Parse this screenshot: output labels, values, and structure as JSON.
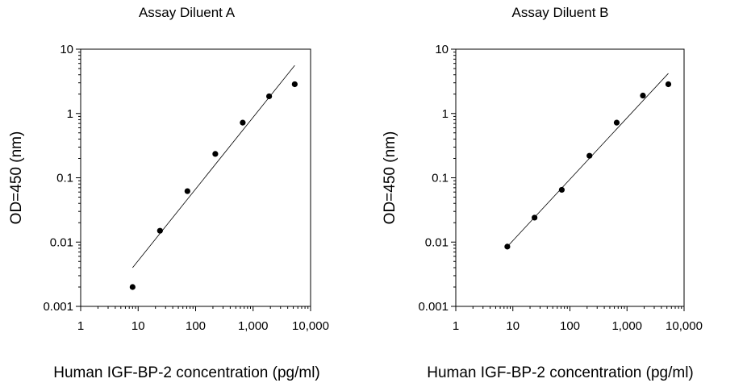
{
  "chart_data": [
    {
      "type": "scatter",
      "title": "Assay Diluent A",
      "xlabel": "Human IGF-BP-2 concentration (pg/ml)",
      "ylabel": "OD=450 (nm)",
      "xscale": "log",
      "yscale": "log",
      "xlim": [
        1,
        10000
      ],
      "ylim": [
        0.001,
        10
      ],
      "xticks": [
        1,
        10,
        100,
        1000,
        10000
      ],
      "xtick_labels": [
        "1",
        "10",
        "100",
        "1,000",
        "10,000"
      ],
      "yticks": [
        0.001,
        0.01,
        0.1,
        1,
        10
      ],
      "ytick_labels": [
        "0.001",
        "0.01",
        "0.1",
        "1",
        "10"
      ],
      "grid": false,
      "series": [
        {
          "x": [
            8,
            24,
            72,
            220,
            660,
            1900,
            5300
          ],
          "y": [
            0.002,
            0.015,
            0.062,
            0.235,
            0.72,
            1.85,
            2.85
          ]
        }
      ],
      "fit_line": {
        "x": [
          8,
          5300
        ],
        "y": [
          0.004,
          5.6
        ]
      }
    },
    {
      "type": "scatter",
      "title": "Assay Diluent B",
      "xlabel": "Human IGF-BP-2 concentration (pg/ml)",
      "ylabel": "OD=450 (nm)",
      "xscale": "log",
      "yscale": "log",
      "xlim": [
        1,
        10000
      ],
      "ylim": [
        0.001,
        10
      ],
      "xticks": [
        1,
        10,
        100,
        1000,
        10000
      ],
      "xtick_labels": [
        "1",
        "10",
        "100",
        "1,000",
        "10,000"
      ],
      "yticks": [
        0.001,
        0.01,
        0.1,
        1,
        10
      ],
      "ytick_labels": [
        "0.001",
        "0.01",
        "0.1",
        "1",
        "10"
      ],
      "grid": false,
      "series": [
        {
          "x": [
            8,
            24,
            72,
            220,
            660,
            1900,
            5300
          ],
          "y": [
            0.0085,
            0.024,
            0.065,
            0.22,
            0.72,
            1.9,
            2.85
          ]
        }
      ],
      "fit_line": {
        "x": [
          8,
          5300
        ],
        "y": [
          0.0085,
          4.2
        ]
      }
    }
  ]
}
